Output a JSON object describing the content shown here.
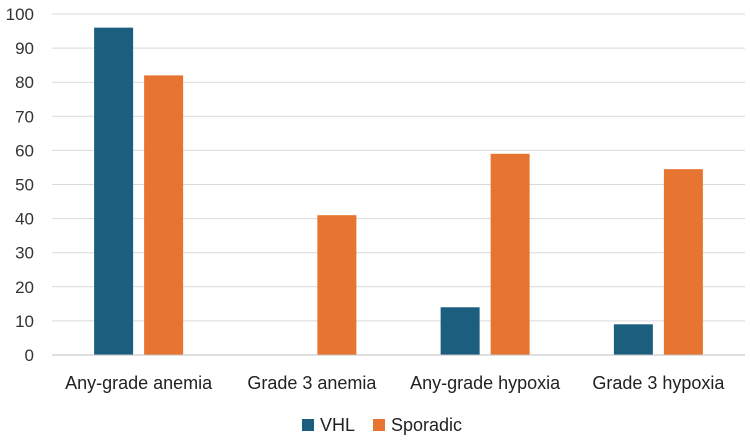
{
  "chart_data": {
    "type": "bar",
    "title": "",
    "xlabel": "",
    "ylabel": "",
    "categories": [
      "Any-grade anemia",
      "Grade 3 anemia",
      "Any-grade hypoxia",
      "Grade 3 hypoxia"
    ],
    "series": [
      {
        "name": "VHL",
        "color": "#1b5e7e",
        "values": [
          96,
          0,
          14,
          9
        ]
      },
      {
        "name": "Sporadic",
        "color": "#e87431",
        "values": [
          82,
          41,
          59,
          54.5
        ]
      }
    ],
    "ylim": [
      0,
      100
    ],
    "yticks": [
      0,
      10,
      20,
      30,
      40,
      50,
      60,
      70,
      80,
      90,
      100
    ],
    "grid": true,
    "legend": "bottom"
  }
}
